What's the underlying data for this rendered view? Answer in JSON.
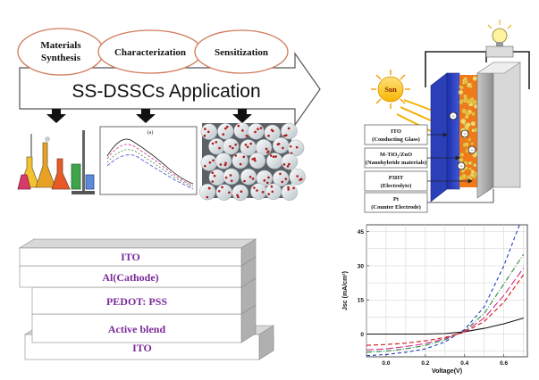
{
  "process": {
    "steps": [
      "Materials Synthesis",
      "Characterization",
      "Sensitization"
    ],
    "application": "SS-DSSCs Application",
    "inset_panel_label": "(a)"
  },
  "device": {
    "sun_label": "Sun",
    "layers": [
      {
        "name": "ITO",
        "desc": "(Conducting Glass)"
      },
      {
        "name": "M-TiO₂/ZnO",
        "desc": "(Nanohybride materials)"
      },
      {
        "name": "P3HT",
        "desc": "(Electrolyte)"
      },
      {
        "name": "Pt",
        "desc": "(Counter Electrode)"
      }
    ]
  },
  "stack": {
    "layers": [
      "ITO",
      "Al(Cathode)",
      "PEDOT: PSS",
      "Active blend",
      "ITO"
    ]
  },
  "chart_data": {
    "type": "line",
    "xlabel": "Voltage(V)",
    "ylabel": "Jsc (mA/cm²)",
    "xlim": [
      -0.1,
      0.72
    ],
    "ylim": [
      -10,
      48
    ],
    "xticks": [
      0.0,
      0.2,
      0.4,
      0.6
    ],
    "xtick_labels": [
      "0.0",
      "0.2",
      "0.4",
      "0.6"
    ],
    "yticks": [
      0,
      15,
      30,
      45
    ],
    "ytick_labels": [
      "0",
      "15",
      "30",
      "45"
    ],
    "grid": true,
    "series": [
      {
        "color": "#111111",
        "dash": "",
        "x": [
          -0.1,
          0.0,
          0.1,
          0.2,
          0.3,
          0.4,
          0.5,
          0.6,
          0.7
        ],
        "y": [
          0,
          0,
          0,
          0,
          0.2,
          1.0,
          2.5,
          4.5,
          7.0
        ]
      },
      {
        "color": "#1f3fbf",
        "dash": "4,3",
        "x": [
          -0.1,
          0.0,
          0.1,
          0.2,
          0.3,
          0.4,
          0.5,
          0.6,
          0.68
        ],
        "y": [
          -9.5,
          -9.0,
          -8.0,
          -6.5,
          -3.5,
          2.0,
          12.0,
          30.0,
          48.0
        ]
      },
      {
        "color": "#2a8a3a",
        "dash": "6,2,1,2",
        "x": [
          -0.1,
          0.0,
          0.1,
          0.2,
          0.3,
          0.4,
          0.5,
          0.6,
          0.7
        ],
        "y": [
          -8.0,
          -7.5,
          -6.5,
          -5.0,
          -2.5,
          1.5,
          9.0,
          22.0,
          35.0
        ]
      },
      {
        "color": "#d62a8a",
        "dash": "8,3",
        "x": [
          -0.1,
          0.0,
          0.1,
          0.2,
          0.3,
          0.4,
          0.5,
          0.6,
          0.7
        ],
        "y": [
          -7.0,
          -6.5,
          -5.5,
          -4.2,
          -2.0,
          1.2,
          7.0,
          17.0,
          29.0
        ]
      },
      {
        "color": "#d01515",
        "dash": "5,3",
        "x": [
          -0.1,
          0.0,
          0.1,
          0.2,
          0.3,
          0.4,
          0.5,
          0.6,
          0.7
        ],
        "y": [
          -5.0,
          -4.6,
          -4.0,
          -3.0,
          -1.5,
          0.8,
          5.5,
          14.0,
          26.0
        ]
      }
    ]
  }
}
